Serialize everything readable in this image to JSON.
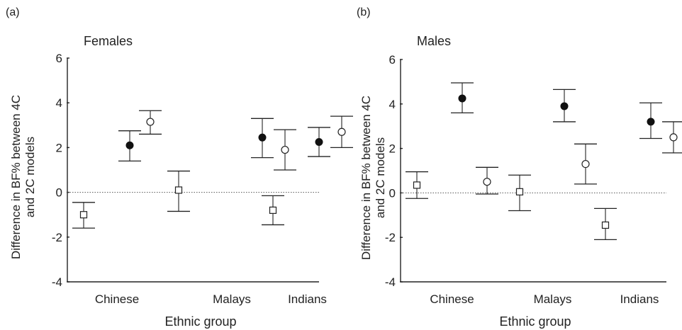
{
  "chart_data": [
    {
      "type": "scatter",
      "panel_label": "(a)",
      "title": "Females",
      "xlabel": "Ethnic group",
      "ylabel_line1": "Difference in BF% between 4C",
      "ylabel_line2": "and 2C models",
      "ylim": [
        -4,
        6
      ],
      "yticks": [
        "-4",
        "-2",
        "0",
        "2",
        "4",
        "6"
      ],
      "reference_line": 0,
      "categories": [
        "Chinese",
        "Malays",
        "Indians"
      ],
      "series": [
        {
          "marker": "square",
          "values": [
            -1.0,
            0.1,
            -0.8
          ],
          "lower": [
            -1.6,
            -0.85,
            -1.45
          ],
          "upper": [
            -0.45,
            0.95,
            -0.15
          ]
        },
        {
          "marker": "filled-circle",
          "values": [
            2.1,
            2.45,
            2.25
          ],
          "lower": [
            1.4,
            1.55,
            1.6
          ],
          "upper": [
            2.75,
            3.3,
            2.9
          ]
        },
        {
          "marker": "open-circle",
          "values": [
            3.15,
            1.9,
            2.7
          ],
          "lower": [
            2.6,
            1.0,
            2.0
          ],
          "upper": [
            3.65,
            2.8,
            3.4
          ]
        }
      ]
    },
    {
      "type": "scatter",
      "panel_label": "(b)",
      "title": "Males",
      "xlabel": "Ethnic group",
      "ylabel_line1": "Difference in BF% between 4C",
      "ylabel_line2": "and 2C models",
      "ylim": [
        -4,
        6
      ],
      "yticks": [
        "-4",
        "-2",
        "0",
        "2",
        "4",
        "6"
      ],
      "reference_line": 0,
      "categories": [
        "Chinese",
        "Malays",
        "Indians"
      ],
      "series": [
        {
          "marker": "square",
          "values": [
            0.35,
            0.05,
            -1.45
          ],
          "lower": [
            -0.25,
            -0.8,
            -2.1
          ],
          "upper": [
            0.95,
            0.8,
            -0.7
          ]
        },
        {
          "marker": "filled-circle",
          "values": [
            4.25,
            3.9,
            3.2
          ],
          "lower": [
            3.6,
            3.2,
            2.45
          ],
          "upper": [
            4.95,
            4.65,
            4.05
          ]
        },
        {
          "marker": "open-circle",
          "values": [
            0.5,
            1.3,
            2.5
          ],
          "lower": [
            -0.05,
            0.4,
            1.8
          ],
          "upper": [
            1.15,
            2.2,
            3.2
          ]
        }
      ]
    }
  ]
}
